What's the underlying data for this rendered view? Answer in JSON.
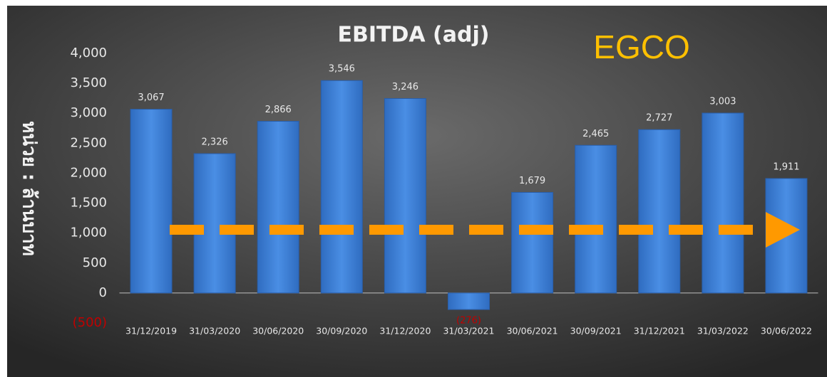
{
  "chart_data": {
    "type": "bar",
    "title": "EBITDA (adj)",
    "annotation": "EGCO",
    "y_label": "หน่วย : ล้านบาท",
    "categories": [
      "31/12/2019",
      "31/03/2020",
      "30/06/2020",
      "30/09/2020",
      "31/12/2020",
      "31/03/2021",
      "30/06/2021",
      "30/09/2021",
      "31/12/2021",
      "31/03/2022",
      "30/06/2022"
    ],
    "values": [
      3067,
      2326,
      2866,
      3546,
      3246,
      -276,
      1679,
      2465,
      2727,
      3003,
      1911
    ],
    "value_labels": [
      "3,067",
      "2,326",
      "2,866",
      "3,546",
      "3,246",
      "(276)",
      "1,679",
      "2,465",
      "2,727",
      "3,003",
      "1,911"
    ],
    "color": "#3f82d8",
    "negative_label_color": "#c00000",
    "ylim": [
      -500,
      4000
    ],
    "yticks": [
      {
        "value": -500,
        "label": "(500)"
      },
      0,
      500,
      {
        "value": 1000,
        "label": "1,000"
      },
      {
        "value": 1500,
        "label": "1,500"
      },
      {
        "value": 2000,
        "label": "2,000"
      },
      {
        "value": 2500,
        "label": "2,500"
      },
      {
        "value": 3000,
        "label": "3,000"
      },
      {
        "value": 3500,
        "label": "3,500"
      },
      {
        "value": 4000,
        "label": "4,000"
      }
    ],
    "grid": false
  }
}
